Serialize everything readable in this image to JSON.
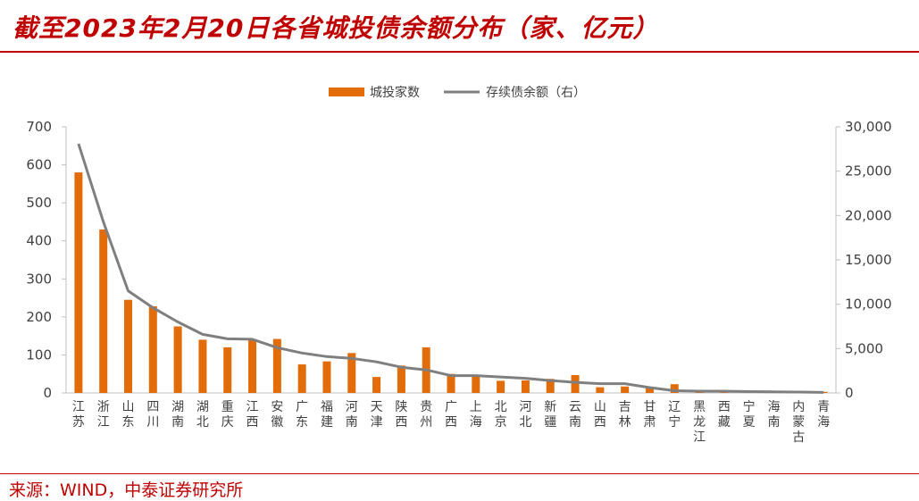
{
  "title": "截至2023年2月20日各省城投债余额分布（家、亿元）",
  "source": "来源：WIND，中泰证券研究所",
  "colors": {
    "bar": "#e26b0a",
    "line": "#7f7f7f",
    "accent": "#c00000",
    "axis": "#bfbfbf",
    "text": "#404040"
  },
  "chart_data": {
    "type": "bar+line",
    "categories": [
      "江苏",
      "浙江",
      "山东",
      "四川",
      "湖南",
      "湖北",
      "重庆",
      "江西",
      "安徽",
      "广东",
      "福建",
      "河南",
      "天津",
      "陕西",
      "贵州",
      "广西",
      "上海",
      "北京",
      "河北",
      "新疆",
      "云南",
      "山西",
      "吉林",
      "甘肃",
      "辽宁",
      "黑龙江",
      "西藏",
      "宁夏",
      "海南",
      "内蒙古",
      "青海"
    ],
    "series": [
      {
        "name": "城投家数",
        "type": "bar",
        "axis": "left",
        "values": [
          580,
          430,
          245,
          228,
          175,
          140,
          120,
          140,
          142,
          75,
          83,
          105,
          42,
          72,
          120,
          50,
          47,
          32,
          33,
          37,
          47,
          15,
          17,
          13,
          23,
          8,
          5,
          3,
          3,
          5,
          3
        ]
      },
      {
        "name": "存续债余额（右）",
        "type": "line",
        "axis": "right",
        "values": [
          28100,
          19300,
          11500,
          9600,
          8000,
          6600,
          6100,
          6050,
          5100,
          4500,
          4100,
          3900,
          3500,
          2900,
          2600,
          1950,
          1950,
          1800,
          1650,
          1400,
          1200,
          1050,
          1050,
          600,
          250,
          200,
          200,
          150,
          130,
          100,
          60
        ]
      }
    ],
    "y_left": {
      "min": 0,
      "max": 700,
      "ticks": [
        0,
        100,
        200,
        300,
        400,
        500,
        600,
        700
      ]
    },
    "y_right": {
      "min": 0,
      "max": 30000,
      "ticks": [
        0,
        5000,
        10000,
        15000,
        20000,
        25000,
        30000
      ],
      "tick_labels": [
        "0",
        "5,000",
        "10,000",
        "15,000",
        "20,000",
        "25,000",
        "30,000"
      ]
    },
    "legend_position": "top-center",
    "grid": false
  }
}
